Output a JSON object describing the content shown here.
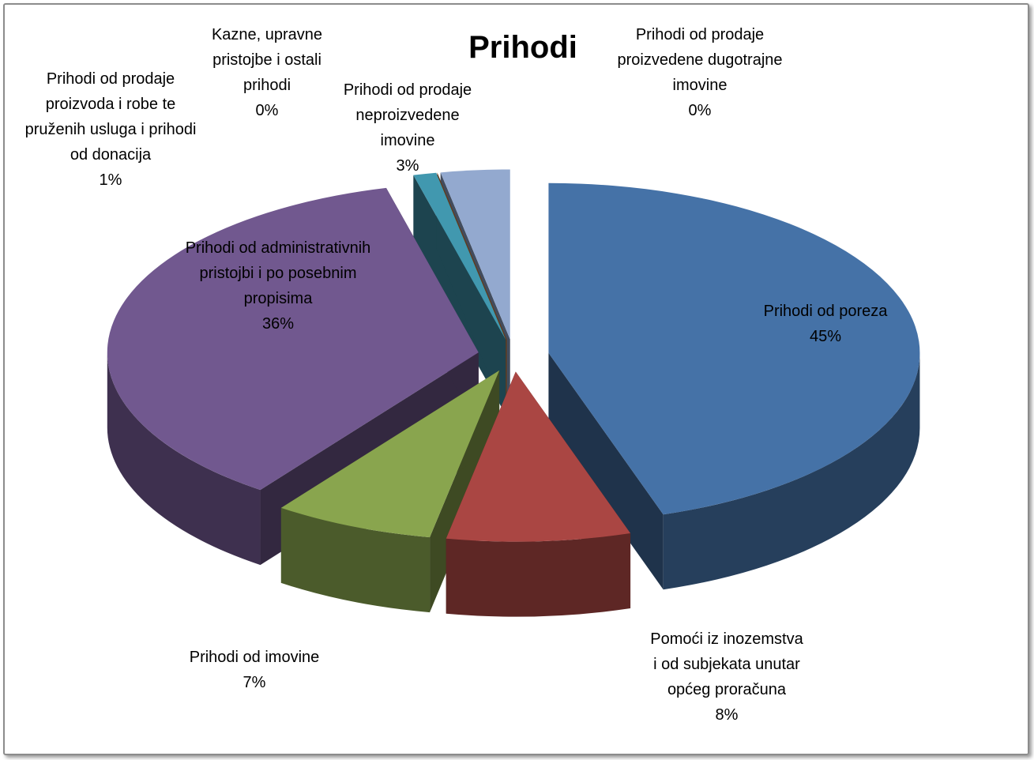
{
  "chart_data": {
    "type": "pie",
    "title": "Prihodi",
    "categories": [
      "Prihodi od poreza",
      "Pomoći iz inozemstva i od subjekata unutar općeg proračuna",
      "Prihodi od imovine",
      "Prihodi od administrativnih pristojbi i po posebnim propisima",
      "Prihodi od prodaje proizvoda i robe te pruženih usluga i prihodi od donacija",
      "Kazne, upravne pristojbe i ostali prihodi",
      "Prihodi od prodaje neproizvedene imovine",
      "Prihodi od prodaje proizvedene dugotrajne imovine"
    ],
    "values": [
      45,
      8,
      7,
      36,
      1,
      0,
      3,
      0
    ],
    "value_labels": [
      "45%",
      "8%",
      "7%",
      "36%",
      "1%",
      "0%",
      "3%",
      "0%"
    ],
    "colors": [
      "#4572a7",
      "#aa4643",
      "#89a54e",
      "#71588f",
      "#4198af",
      "#db843d",
      "#93a9cf",
      "#d19392"
    ]
  }
}
